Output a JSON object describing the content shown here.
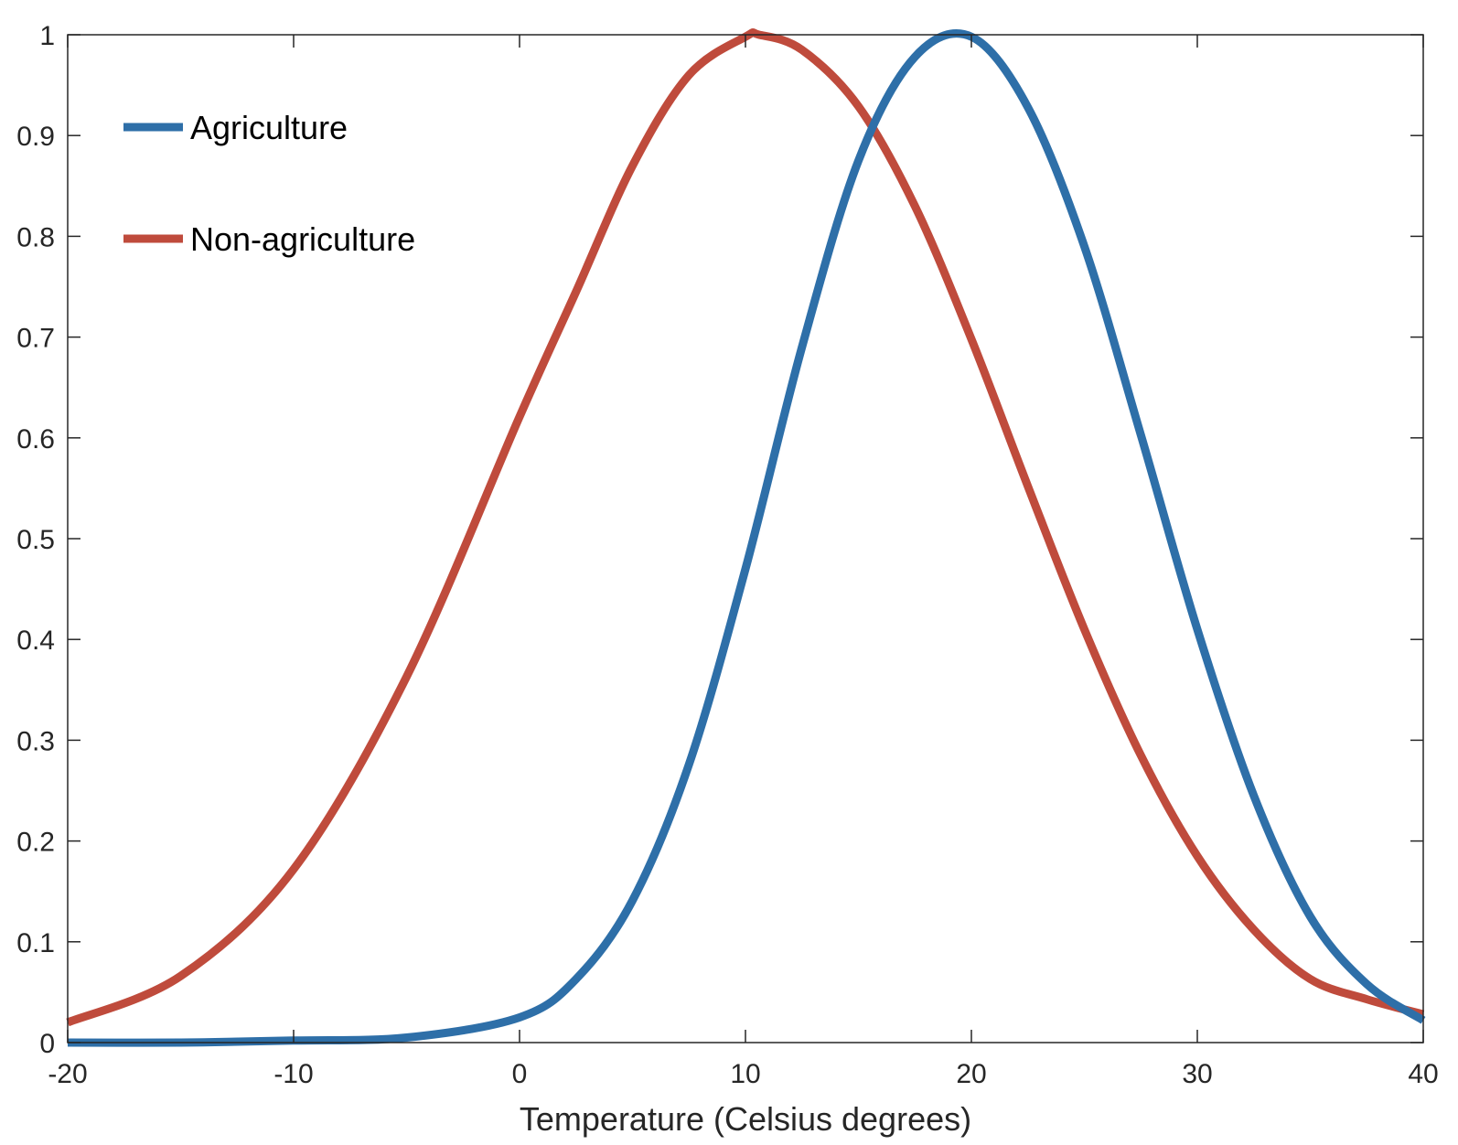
{
  "chart_data": {
    "type": "line",
    "title": "",
    "xlabel": "Temperature (Celsius degrees)",
    "ylabel": "",
    "xlim": [
      -20,
      40
    ],
    "ylim": [
      0,
      1
    ],
    "xticks": [
      -20,
      -10,
      0,
      10,
      20,
      30,
      40
    ],
    "xtick_labels": [
      "-20",
      "-10",
      "0",
      "10",
      "20",
      "30",
      "40"
    ],
    "yticks": [
      0,
      0.1,
      0.2,
      0.3,
      0.4,
      0.5,
      0.6,
      0.7,
      0.8,
      0.9,
      1
    ],
    "ytick_labels": [
      "0",
      "0.1",
      "0.2",
      "0.3",
      "0.4",
      "0.5",
      "0.6",
      "0.7",
      "0.8",
      "0.9",
      "1"
    ],
    "grid": false,
    "legend_position": "top-left",
    "series": [
      {
        "name": "Agriculture",
        "color": "#2e6fa8",
        "x": [
          -20,
          -15,
          -10,
          -5,
          0,
          2.5,
          5,
          7.5,
          10,
          12.5,
          15,
          17.5,
          20,
          22.5,
          25,
          27.5,
          30,
          32.5,
          35,
          37.5,
          40
        ],
        "y": [
          0.0,
          0.0,
          0.002,
          0.005,
          0.025,
          0.063,
          0.141,
          0.276,
          0.47,
          0.69,
          0.875,
          0.978,
          0.998,
          0.928,
          0.79,
          0.603,
          0.41,
          0.245,
          0.125,
          0.058,
          0.022
        ]
      },
      {
        "name": "Non-agriculture",
        "color": "#bf4b3c",
        "x": [
          -20,
          -15,
          -10,
          -5,
          0,
          2.5,
          5,
          7.5,
          10,
          10.6,
          12.5,
          15,
          17.5,
          20,
          22.5,
          25,
          27.5,
          30,
          32.5,
          35,
          37.5,
          40
        ],
        "y": [
          0.02,
          0.066,
          0.172,
          0.363,
          0.621,
          0.745,
          0.87,
          0.96,
          0.998,
          1.0,
          0.985,
          0.929,
          0.83,
          0.698,
          0.552,
          0.41,
          0.285,
          0.185,
          0.112,
          0.063,
          0.043,
          0.028
        ]
      }
    ]
  }
}
